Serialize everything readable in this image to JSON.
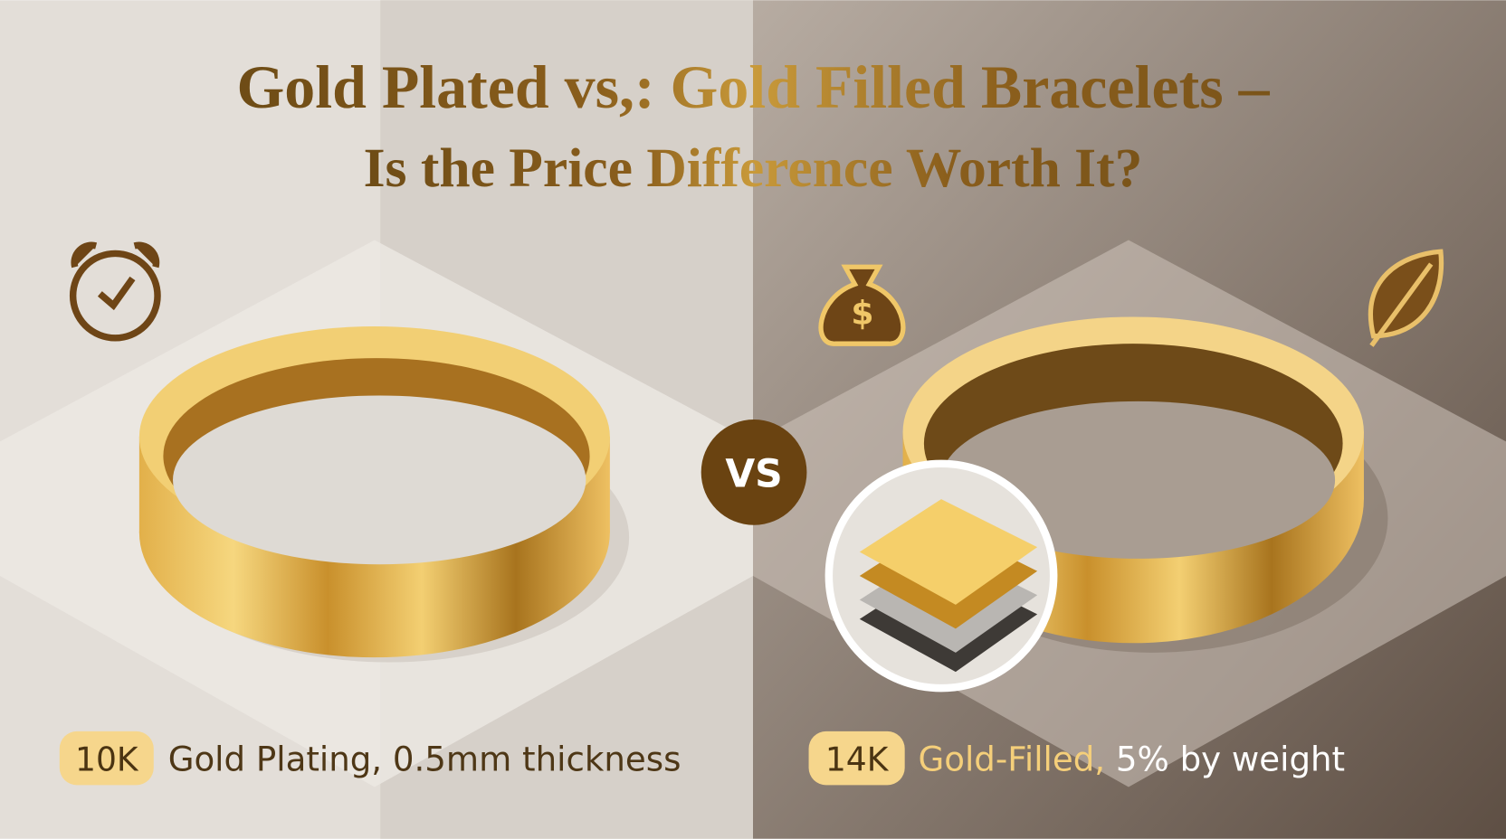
{
  "header": {
    "title_line1": "Gold Plated vs,: Gold Filled Bracelets –",
    "title_line2": "Is the Price Difference Worth It?"
  },
  "vs_label": "VS",
  "left": {
    "badge": "10K",
    "caption": "Gold Plating, 0.5mm thickness"
  },
  "right": {
    "badge": "14K",
    "caption_highlight": "Gold-Filled,",
    "caption_rest": "5% by weight"
  }
}
